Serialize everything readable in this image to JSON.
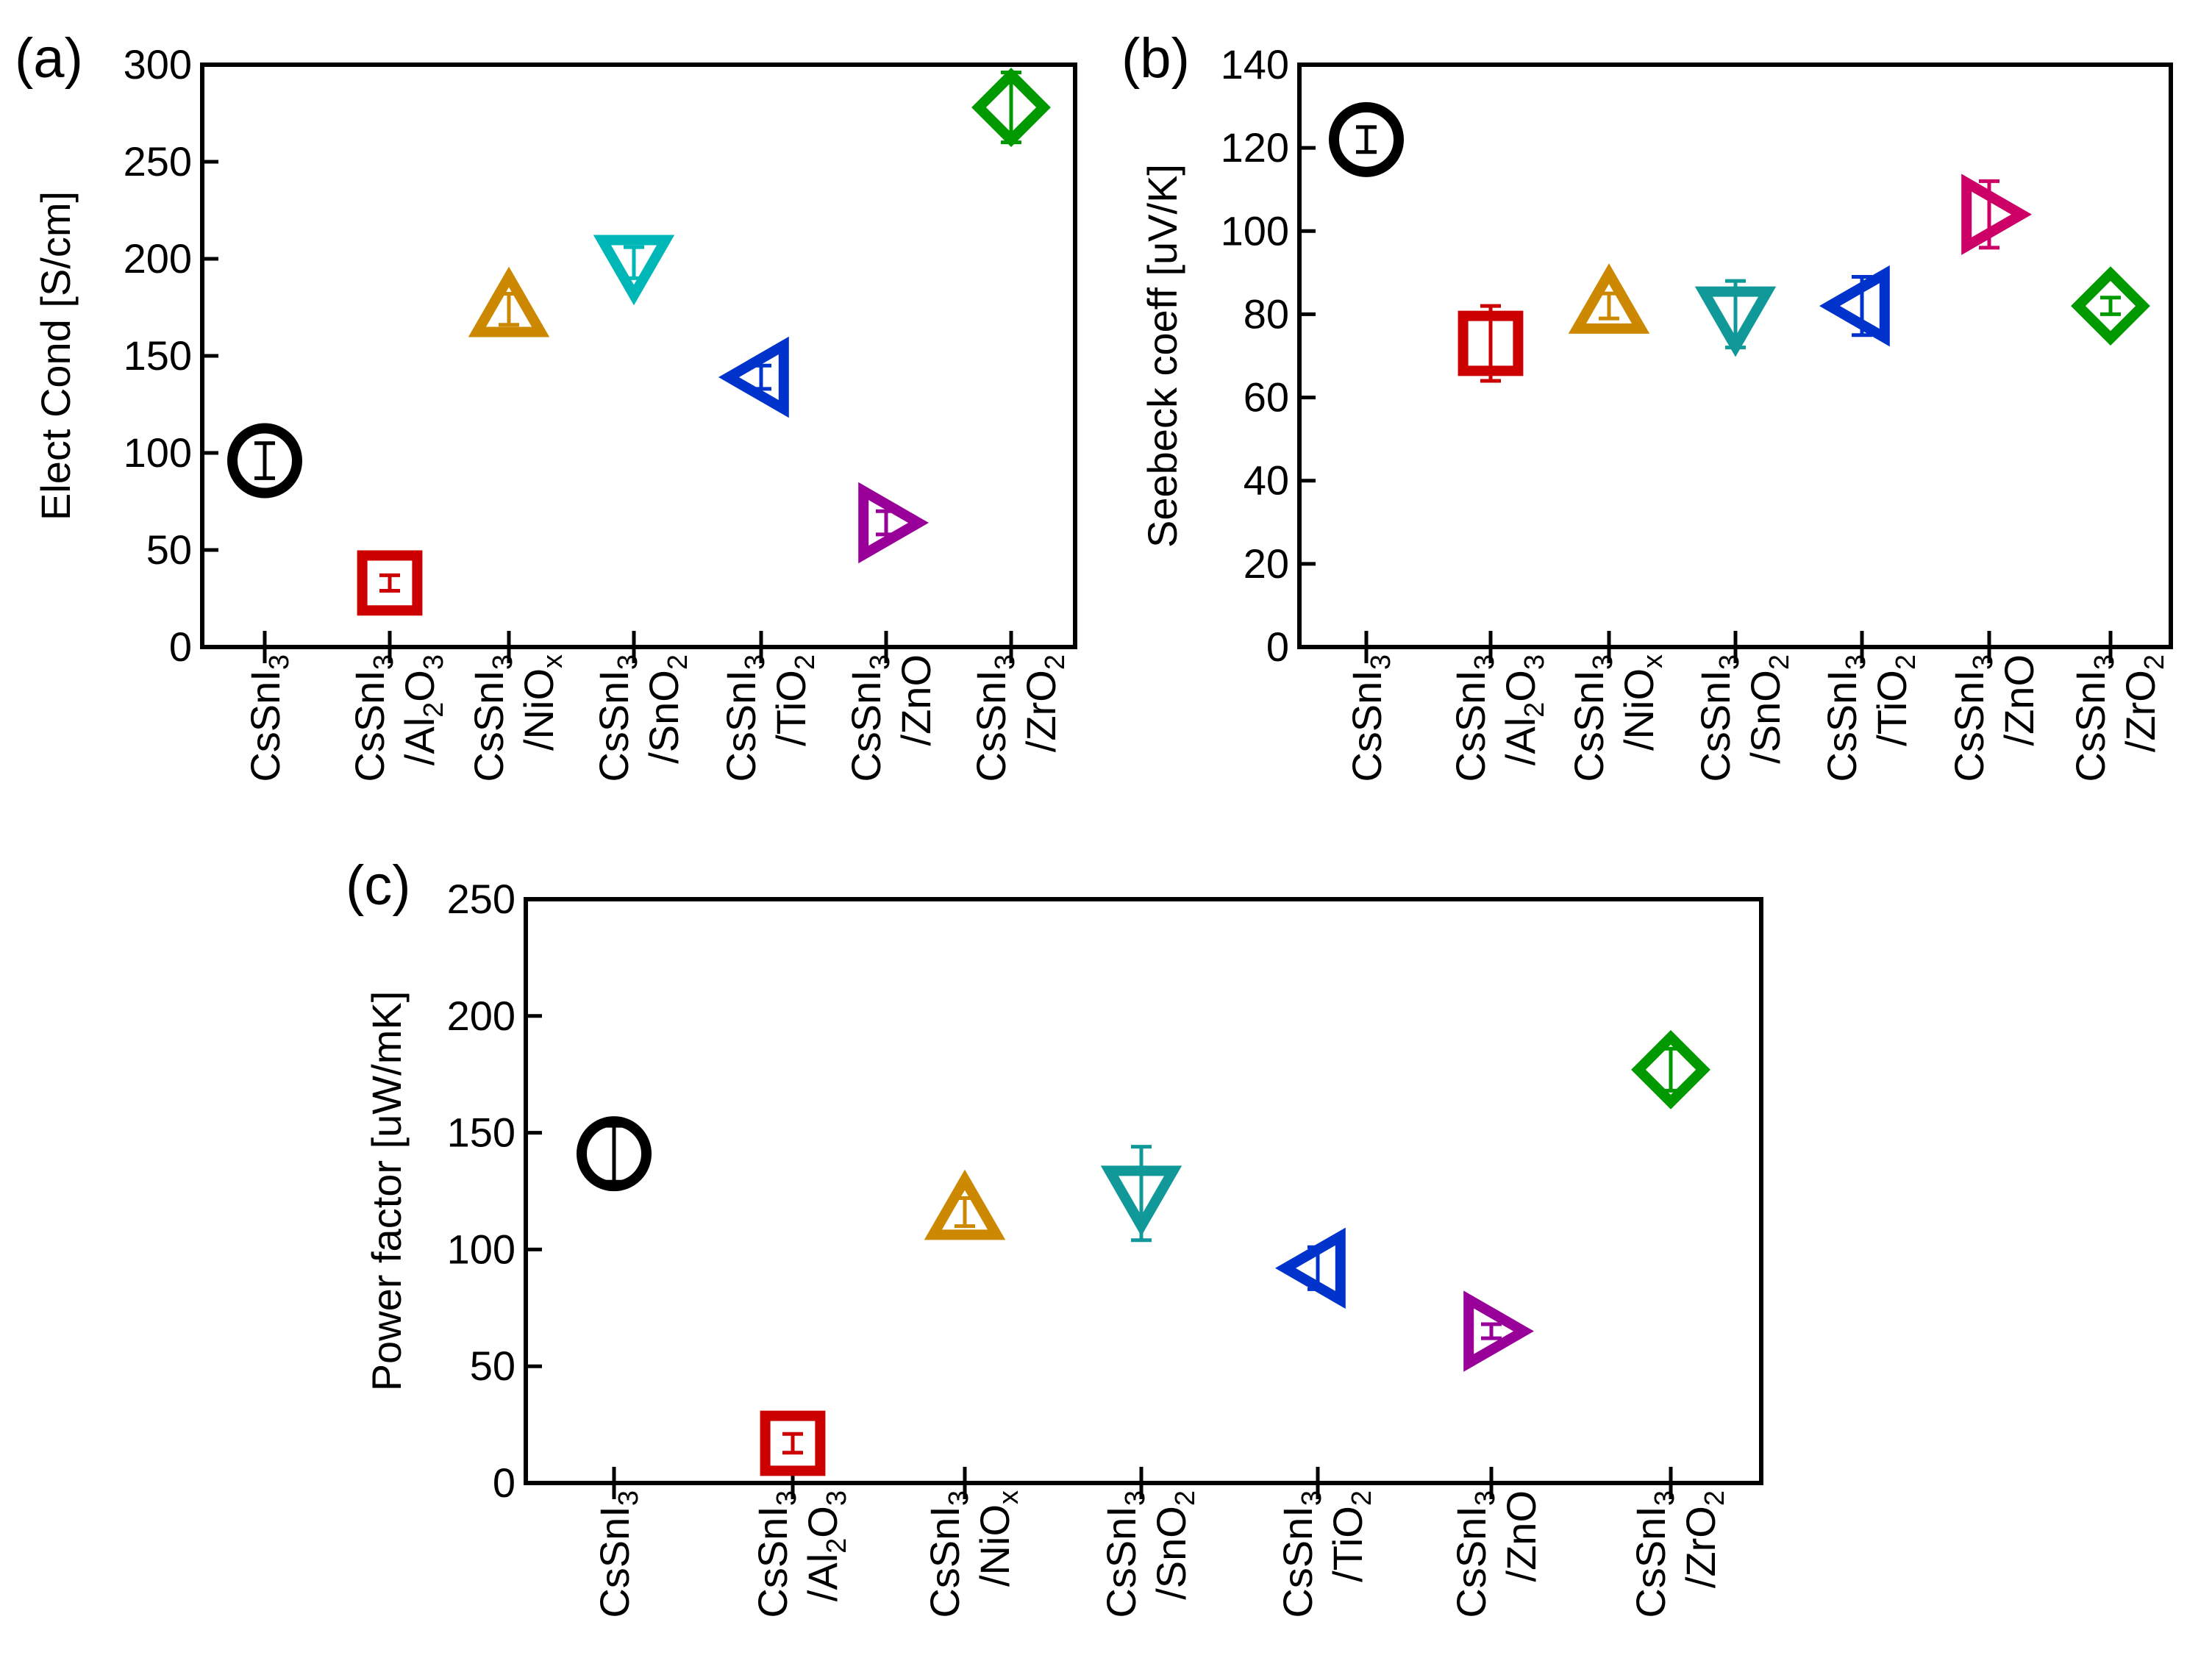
{
  "chart_data": [
    {
      "type": "scatter",
      "panel_label": "(a)",
      "ylabel": "Elect Cond [S/cm]",
      "ylim": [
        0,
        300
      ],
      "yticks": [
        0,
        50,
        100,
        150,
        200,
        250,
        300
      ],
      "grid": false,
      "categories": [
        "CsSnI3",
        "CsSnI3/Al2O3",
        "CsSnI3/NiOx",
        "CsSnI3/SnO2",
        "CsSnI3/TiO2",
        "CsSnI3/ZnO",
        "CsSnI3/ZrO2"
      ],
      "values": [
        96,
        33,
        174,
        198,
        139,
        64,
        278
      ],
      "error": [
        9,
        4,
        8,
        8,
        6,
        6,
        18
      ]
    },
    {
      "type": "scatter",
      "panel_label": "(b)",
      "ylabel": "Seebeck coeff [uV/K]",
      "ylim": [
        0,
        140
      ],
      "yticks": [
        0,
        20,
        40,
        60,
        80,
        100,
        120,
        140
      ],
      "grid": false,
      "categories": [
        "CsSnI3",
        "CsSnI3/Al2O3",
        "CsSnI3/NiOx",
        "CsSnI3/SnO2",
        "CsSnI3/TiO2",
        "CsSnI3/ZnO",
        "CsSnI3/ZrO2"
      ],
      "values": [
        122,
        73,
        82,
        80,
        82,
        104,
        82
      ],
      "error": [
        3,
        9,
        3,
        8,
        7,
        8,
        2
      ]
    },
    {
      "type": "scatter",
      "panel_label": "(c)",
      "ylabel": "Power factor [uW/mK]",
      "ylim": [
        0,
        250
      ],
      "yticks": [
        0,
        50,
        100,
        150,
        200,
        250
      ],
      "grid": false,
      "categories": [
        "CsSnI3",
        "CsSnI3/Al2O3",
        "CsSnI3/NiOx",
        "CsSnI3/SnO2",
        "CsSnI3/TiO2",
        "CsSnI3/ZnO",
        "CsSnI3/ZrO2"
      ],
      "values": [
        141,
        17,
        116,
        124,
        92,
        65,
        177
      ],
      "error": [
        12,
        4,
        6,
        20,
        9,
        3,
        9
      ]
    }
  ],
  "series_style": [
    {
      "name": "CsSnI3",
      "marker": "circle",
      "color": "#000000"
    },
    {
      "name": "CsSnI3/Al2O3",
      "marker": "square",
      "color": "#cc0000"
    },
    {
      "name": "CsSnI3/NiOx",
      "marker": "triangle-up",
      "color": "#cc8800"
    },
    {
      "name": "CsSnI3/SnO2",
      "marker": "triangle-down",
      "color": "#00b7b7"
    },
    {
      "name": "CsSnI3/TiO2",
      "marker": "triangle-left",
      "color": "#0033cc"
    },
    {
      "name": "CsSnI3/ZnO",
      "marker": "triangle-right",
      "color": "#990099"
    },
    {
      "name": "CsSnI3/ZrO2",
      "marker": "diamond",
      "color": "#009900"
    }
  ],
  "panel_series_color_overrides": {
    "1": {
      "CsSnI3/SnO2": "#119999",
      "CsSnI3/ZnO": "#cc0066"
    },
    "2": {
      "CsSnI3/SnO2": "#119999"
    }
  },
  "category_labels": [
    {
      "main": "CsSnI",
      "sub": "3",
      "line2": "",
      "line2_sub": "",
      "line2_tail": ""
    },
    {
      "main": "CsSnI",
      "sub": "3",
      "line2": "/Al",
      "line2_sub": "2",
      "line2_tail": "O",
      "line2_sub2": "3"
    },
    {
      "main": "CsSnI",
      "sub": "3",
      "line2": "/NiO",
      "line2_sub": "x",
      "line2_tail": ""
    },
    {
      "main": "CsSnI",
      "sub": "3",
      "line2": "/SnO",
      "line2_sub": "2",
      "line2_tail": ""
    },
    {
      "main": "CsSnI",
      "sub": "3",
      "line2": "/TiO",
      "line2_sub": "2",
      "line2_tail": ""
    },
    {
      "main": "CsSnI",
      "sub": "3",
      "line2": "/ZnO",
      "line2_sub": "",
      "line2_tail": ""
    },
    {
      "main": "CsSnI",
      "sub": "3",
      "line2": "/ZrO",
      "line2_sub": "2",
      "line2_tail": ""
    }
  ]
}
